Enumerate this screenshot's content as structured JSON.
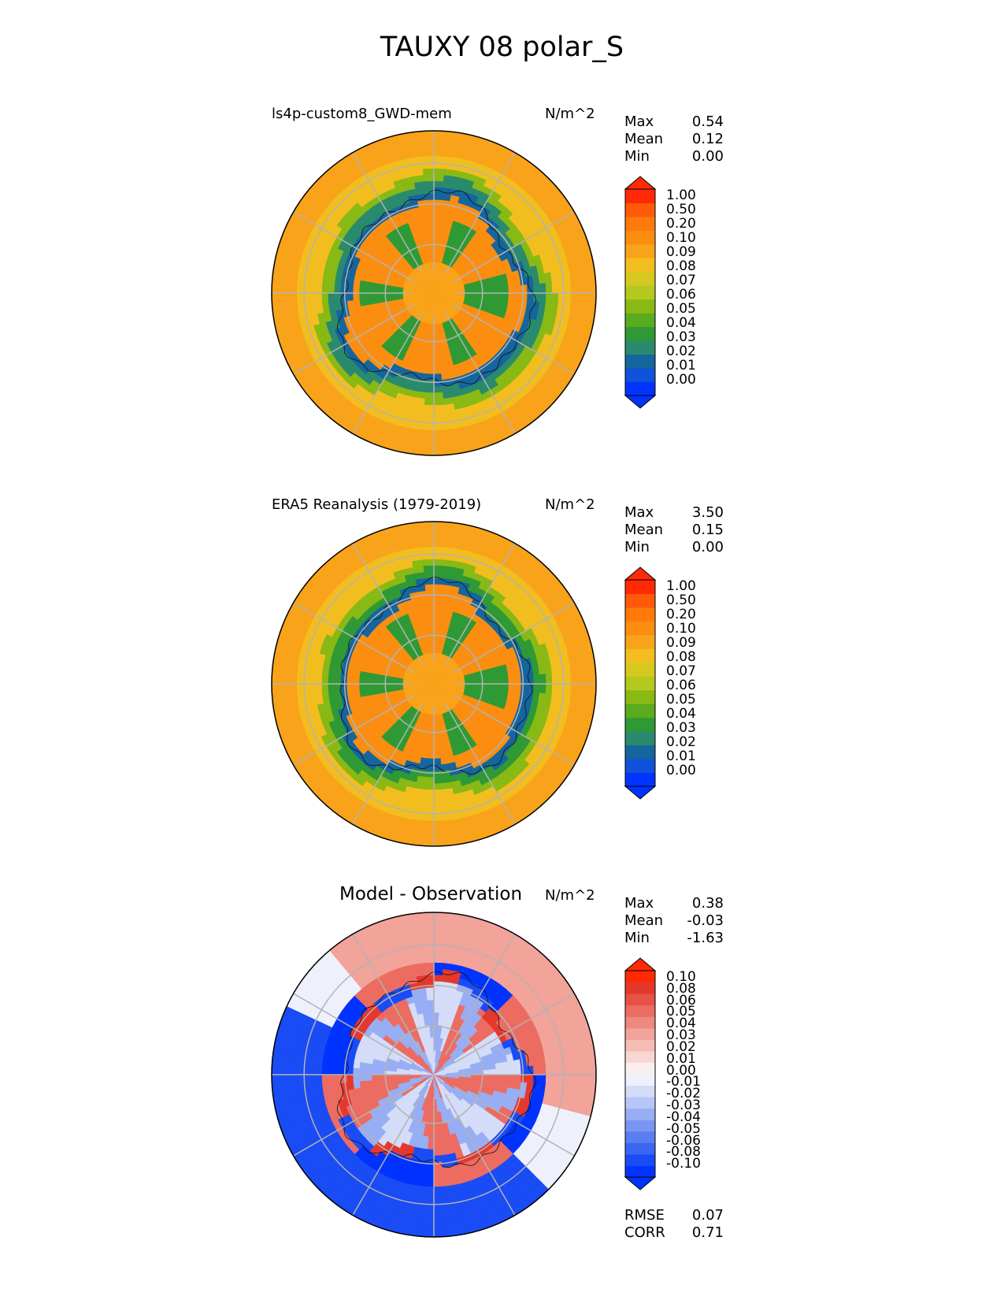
{
  "figure_title": "TAUXY 08 polar_S",
  "icons": [
    "south-polar-map-icon"
  ],
  "colors": {
    "grid": "#b3b3b3",
    "coast": "#111111",
    "std_scale": [
      "#0033ff",
      "#1052d9",
      "#15659e",
      "#2a8a6e",
      "#2f9a35",
      "#5aab1e",
      "#88b915",
      "#b5c820",
      "#d7c820",
      "#f2be1f",
      "#f9a31a",
      "#fb8e10",
      "#ff7a0a",
      "#ff5a08",
      "#ff2a05"
    ],
    "diff_scale": [
      "#0033ff",
      "#1a4cf5",
      "#3a66f0",
      "#5a7ef0",
      "#7a96f2",
      "#98aef4",
      "#b6c6f6",
      "#d4dcf8",
      "#eef1fb",
      "#fbeeee",
      "#f9d6d2",
      "#f6bdb6",
      "#f2a39a",
      "#ef887e",
      "#ec6c62",
      "#e85246",
      "#e5382c",
      "#ff2a05"
    ]
  },
  "chart_data": [
    {
      "type": "heatmap",
      "panel": "model",
      "title": "ls4p-custom8_GWD-mem",
      "units": "N/m^2",
      "stats": [
        {
          "label": "Max",
          "value": "0.54"
        },
        {
          "label": "Mean",
          "value": "0.12"
        },
        {
          "label": "Min",
          "value": "0.00"
        }
      ],
      "colorbar_ticks": [
        "1.00",
        "0.50",
        "0.20",
        "0.10",
        "0.09",
        "0.08",
        "0.07",
        "0.06",
        "0.05",
        "0.04",
        "0.03",
        "0.02",
        "0.01",
        "0.00"
      ],
      "colorbar_extend": "both",
      "projection": "south-polar-stereographic"
    },
    {
      "type": "heatmap",
      "panel": "observation",
      "title": "ERA5 Reanalysis (1979-2019)",
      "units": "N/m^2",
      "stats": [
        {
          "label": "Max",
          "value": "3.50"
        },
        {
          "label": "Mean",
          "value": "0.15"
        },
        {
          "label": "Min",
          "value": "0.00"
        }
      ],
      "colorbar_ticks": [
        "1.00",
        "0.50",
        "0.20",
        "0.10",
        "0.09",
        "0.08",
        "0.07",
        "0.06",
        "0.05",
        "0.04",
        "0.03",
        "0.02",
        "0.01",
        "0.00"
      ],
      "colorbar_extend": "both",
      "projection": "south-polar-stereographic"
    },
    {
      "type": "heatmap",
      "panel": "difference",
      "title": "Model - Observation",
      "units": "N/m^2",
      "stats": [
        {
          "label": "Max",
          "value": "0.38"
        },
        {
          "label": "Mean",
          "value": "-0.03"
        },
        {
          "label": "Min",
          "value": "-1.63"
        }
      ],
      "colorbar_ticks": [
        "0.10",
        "0.08",
        "0.06",
        "0.05",
        "0.04",
        "0.03",
        "0.02",
        "0.01",
        "0.00",
        "-0.01",
        "-0.02",
        "-0.03",
        "-0.04",
        "-0.05",
        "-0.06",
        "-0.08",
        "-0.10"
      ],
      "colorbar_extend": "both",
      "projection": "south-polar-stereographic",
      "metrics": [
        {
          "label": "RMSE",
          "value": "0.07"
        },
        {
          "label": "CORR",
          "value": "0.71"
        }
      ]
    }
  ]
}
